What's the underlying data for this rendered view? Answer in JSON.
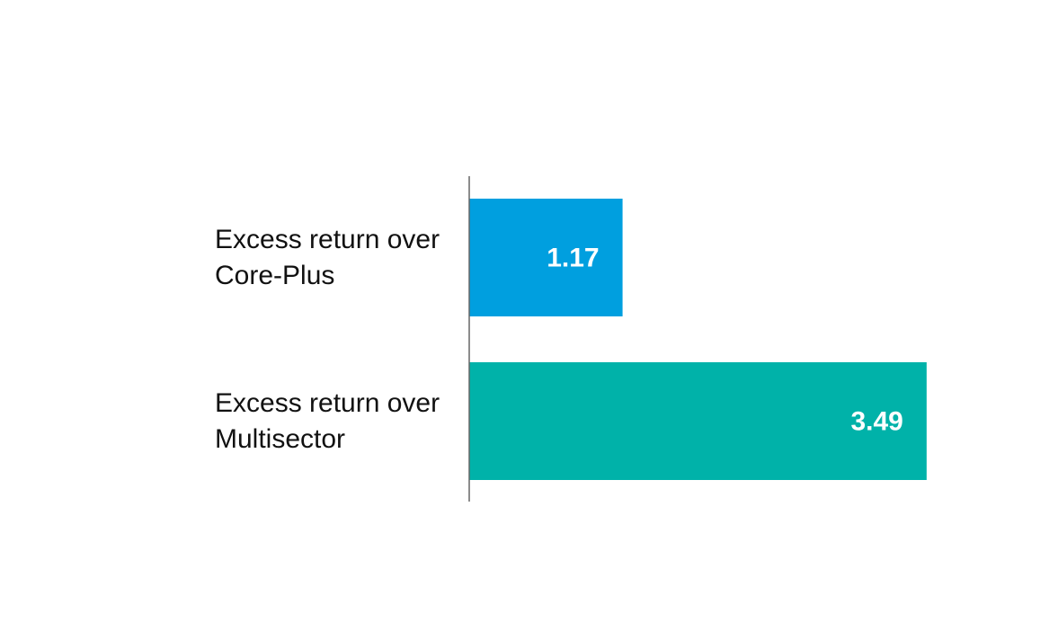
{
  "chart_data": {
    "type": "bar",
    "orientation": "horizontal",
    "categories": [
      "Excess return over Core-Plus",
      "Excess return over Multisector"
    ],
    "values": [
      1.17,
      3.49
    ],
    "colors": [
      "#009fdf",
      "#00b2a9"
    ]
  }
}
